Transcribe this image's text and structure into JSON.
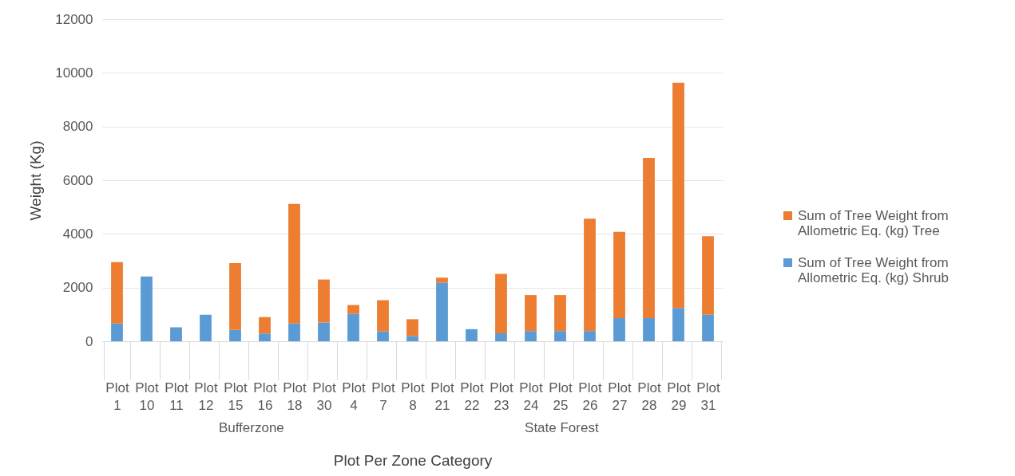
{
  "chart_data": {
    "type": "bar",
    "stacked": true,
    "xlabel": "Plot Per Zone Category",
    "ylabel": "Weight (Kg)",
    "categories": [
      "Plot 1",
      "Plot 10",
      "Plot 11",
      "Plot 12",
      "Plot 15",
      "Plot 16",
      "Plot 18",
      "Plot 30",
      "Plot 4",
      "Plot 7",
      "Plot 8",
      "Plot 21",
      "Plot 22",
      "Plot 23",
      "Plot 24",
      "Plot 25",
      "Plot 26",
      "Plot 27",
      "Plot 28",
      "Plot 29",
      "Plot 31"
    ],
    "series": [
      {
        "name": "Sum of Tree Weight from Allometric Eq. (kg) Shrub",
        "color": "#5b9bd5",
        "values": [
          660,
          2410,
          520,
          990,
          420,
          290,
          660,
          700,
          1020,
          370,
          200,
          2180,
          450,
          300,
          380,
          380,
          380,
          860,
          860,
          1240,
          990
        ]
      },
      {
        "name": "Sum of Tree Weight from Allometric Eq. (kg) Tree",
        "color": "#ed7d31",
        "values": [
          2290,
          0,
          0,
          0,
          2490,
          610,
          4460,
          1600,
          330,
          1160,
          620,
          190,
          0,
          2210,
          1340,
          1340,
          4190,
          3220,
          5970,
          8390,
          2920
        ]
      }
    ],
    "annotations": [
      "Bufferzone",
      "State Forest"
    ],
    "ylim": [
      0,
      12000
    ],
    "yticks": [
      0,
      2000,
      4000,
      6000,
      8000,
      10000,
      12000
    ],
    "grid": "y",
    "legend": "right"
  }
}
